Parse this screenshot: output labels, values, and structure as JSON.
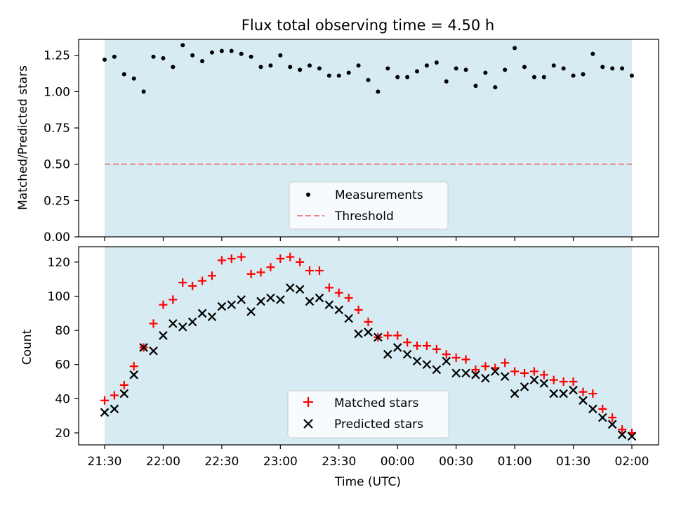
{
  "chart_data": [
    {
      "type": "scatter",
      "title": "Flux total observing time = 4.50 h",
      "ylabel": "Matched/Predicted stars",
      "xlabel": "",
      "ylim": [
        0,
        1.36
      ],
      "yticks": [
        "0.00",
        "0.25",
        "0.50",
        "0.75",
        "1.00",
        "1.25"
      ],
      "ytick_values": [
        0,
        0.25,
        0.5,
        0.75,
        1.0,
        1.25
      ],
      "shade_color": "#add8e6",
      "legend_location": "lower center",
      "legend": {
        "measurements": "Measurements",
        "threshold": "Threshold"
      },
      "threshold": 0.5,
      "threshold_color": "#f08080",
      "series": [
        {
          "name": "Measurements",
          "color": "#000000",
          "y": [
            1.22,
            1.24,
            1.12,
            1.09,
            1.0,
            1.24,
            1.23,
            1.17,
            1.32,
            1.25,
            1.21,
            1.27,
            1.28,
            1.28,
            1.26,
            1.24,
            1.17,
            1.18,
            1.25,
            1.17,
            1.15,
            1.18,
            1.16,
            1.11,
            1.11,
            1.13,
            1.18,
            1.08,
            1.0,
            1.16,
            1.1,
            1.1,
            1.14,
            1.18,
            1.2,
            1.07,
            1.16,
            1.15,
            1.04,
            1.13,
            1.03,
            1.15,
            1.3,
            1.17,
            1.1,
            1.1,
            1.18,
            1.16,
            1.11,
            1.12,
            1.26,
            1.17,
            1.16,
            1.16,
            1.11
          ]
        }
      ]
    },
    {
      "type": "scatter",
      "xlabel": "Time (UTC)",
      "ylabel": "Count",
      "ylim": [
        13,
        129
      ],
      "yticks": [
        "20",
        "40",
        "60",
        "80",
        "100",
        "120"
      ],
      "ytick_values": [
        20,
        40,
        60,
        80,
        100,
        120
      ],
      "x_tick_labels": [
        "21:30",
        "22:00",
        "22:30",
        "23:00",
        "23:30",
        "00:00",
        "00:30",
        "01:00",
        "01:30",
        "02:00"
      ],
      "x_start": "21:30",
      "x_end": "02:00",
      "shade_color": "#add8e6",
      "legend_location": "lower center",
      "legend": {
        "matched": "Matched stars",
        "predicted": "Predicted stars"
      },
      "series": [
        {
          "name": "Matched stars",
          "color": "#ff0000",
          "marker": "+",
          "y": [
            39,
            42,
            48,
            59,
            70,
            84,
            95,
            98,
            108,
            106,
            109,
            112,
            121,
            122,
            123,
            113,
            114,
            117,
            122,
            123,
            120,
            115,
            115,
            105,
            102,
            99,
            92,
            85,
            76,
            77,
            77,
            73,
            71,
            71,
            69,
            66,
            64,
            63,
            57,
            59,
            58,
            61,
            56,
            55,
            56,
            54,
            51,
            50,
            50,
            44,
            43,
            34,
            29,
            22,
            20
          ]
        },
        {
          "name": "Predicted stars",
          "color": "#000000",
          "marker": "x",
          "y": [
            32,
            34,
            43,
            54,
            70,
            68,
            77,
            84,
            82,
            85,
            90,
            88,
            94,
            95,
            98,
            91,
            97,
            99,
            98,
            105,
            104,
            97,
            99,
            95,
            92,
            87,
            78,
            79,
            76,
            66,
            70,
            66,
            62,
            60,
            57,
            62,
            55,
            55,
            54,
            52,
            56,
            53,
            43,
            47,
            51,
            49,
            43,
            43,
            45,
            39,
            34,
            29,
            25,
            19,
            18
          ]
        }
      ]
    }
  ]
}
